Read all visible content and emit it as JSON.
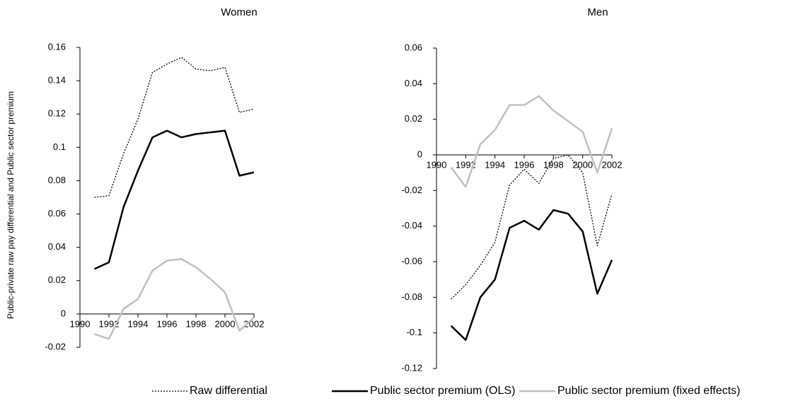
{
  "chart_data": [
    {
      "type": "line",
      "title": "Women",
      "y_label": "Public-private raw pay differential and Public sector premium",
      "x": [
        1991,
        1992,
        1993,
        1994,
        1995,
        1996,
        1997,
        1998,
        1999,
        2000,
        2001,
        2002
      ],
      "xlim": [
        1990,
        2002
      ],
      "xticks": [
        1990,
        1992,
        1994,
        1996,
        1998,
        2000,
        2002
      ],
      "ylim": [
        -0.02,
        0.16
      ],
      "yticks": [
        -0.02,
        0,
        0.02,
        0.04,
        0.06,
        0.08,
        0.1,
        0.12,
        0.14,
        0.16
      ],
      "series": [
        {
          "name": "Raw differential",
          "color": "#000000",
          "line_style": "dotted",
          "values": [
            0.07,
            0.071,
            0.096,
            0.117,
            0.145,
            0.15,
            0.154,
            0.147,
            0.146,
            0.148,
            0.121,
            0.123
          ]
        },
        {
          "name": "Public sector premium (OLS)",
          "color": "#000000",
          "line_style": "solid",
          "values": [
            0.027,
            0.031,
            0.064,
            0.086,
            0.106,
            0.11,
            0.106,
            0.108,
            0.109,
            0.11,
            0.083,
            0.085
          ]
        },
        {
          "name": "Public sector premium (fixed effects)",
          "color": "#c0c0c0",
          "line_style": "solid",
          "values": [
            -0.012,
            -0.015,
            0.003,
            0.009,
            0.026,
            0.032,
            0.033,
            0.028,
            0.021,
            0.013,
            -0.01,
            -0.002
          ]
        }
      ]
    },
    {
      "type": "line",
      "title": "Men",
      "x": [
        1991,
        1992,
        1993,
        1994,
        1995,
        1996,
        1997,
        1998,
        1999,
        2000,
        2001,
        2002
      ],
      "xlim": [
        1990,
        2002
      ],
      "xticks": [
        1990,
        1992,
        1994,
        1996,
        1998,
        2000,
        2002
      ],
      "ylim": [
        -0.12,
        0.06
      ],
      "yticks": [
        -0.12,
        -0.1,
        -0.08,
        -0.06,
        -0.04,
        -0.02,
        0,
        0.02,
        0.04,
        0.06
      ],
      "series": [
        {
          "color": "#000000",
          "line_style": "dotted",
          "values": [
            -0.081,
            -0.073,
            -0.062,
            -0.049,
            -0.017,
            -0.008,
            -0.016,
            -0.002,
            0.0,
            -0.01,
            -0.051,
            -0.022
          ]
        },
        {
          "color": "#000000",
          "line_style": "solid",
          "values": [
            -0.096,
            -0.104,
            -0.08,
            -0.07,
            -0.041,
            -0.037,
            -0.042,
            -0.031,
            -0.033,
            -0.043,
            -0.078,
            -0.059
          ]
        },
        {
          "color": "#c0c0c0",
          "line_style": "solid",
          "values": [
            -0.007,
            -0.018,
            0.006,
            0.014,
            0.028,
            0.028,
            0.033,
            0.025,
            0.019,
            0.013,
            -0.01,
            0.015
          ]
        }
      ]
    }
  ]
}
